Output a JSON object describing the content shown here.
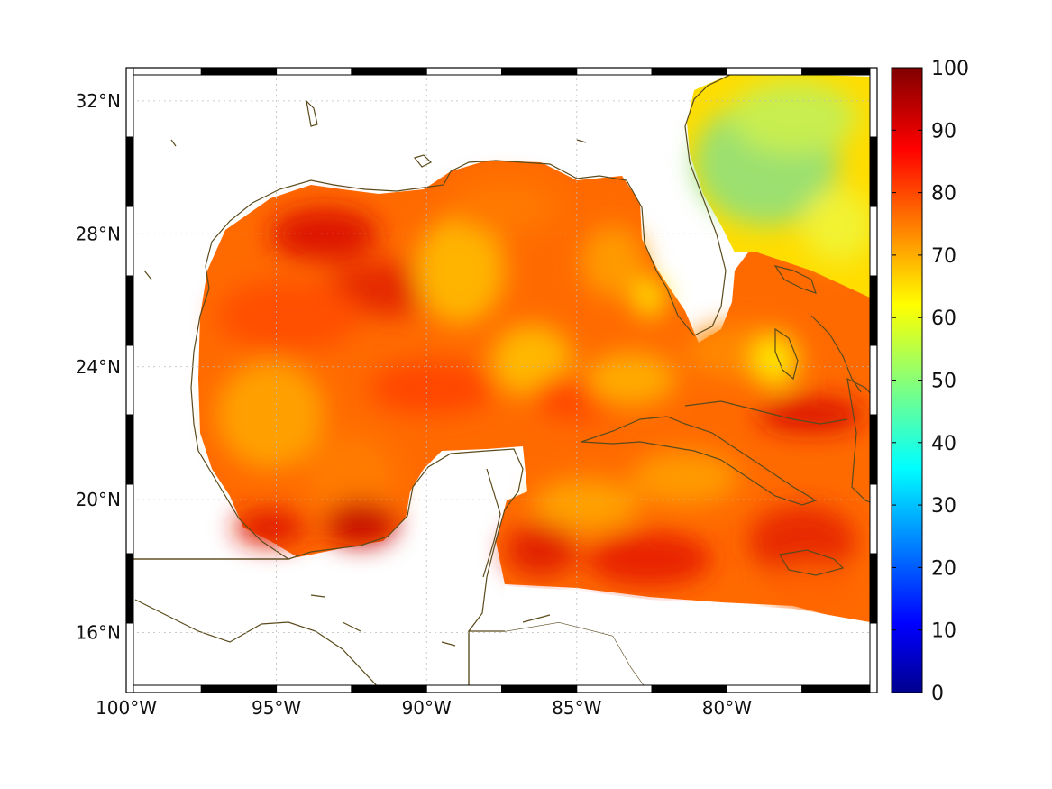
{
  "map": {
    "projection": "mercator-like lat/lon",
    "lon_range": [
      -100,
      -75
    ],
    "lat_range": [
      14.2,
      33
    ],
    "x_ticks": [
      {
        "lon": -100,
        "label": "100°W"
      },
      {
        "lon": -95,
        "label": "95°W"
      },
      {
        "lon": -90,
        "label": "90°W"
      },
      {
        "lon": -85,
        "label": "85°W"
      },
      {
        "lon": -80,
        "label": "80°W"
      }
    ],
    "y_ticks": [
      {
        "lat": 32,
        "label": "32°N"
      },
      {
        "lat": 28,
        "label": "28°N"
      },
      {
        "lat": 24,
        "label": "24°N"
      },
      {
        "lat": 20,
        "label": "20°N"
      },
      {
        "lat": 16,
        "label": "16°N"
      }
    ],
    "grid": true,
    "frame": "alternating black/white border",
    "land_color": "#ffffff",
    "coastline_color": "#5a4a1c"
  },
  "colorbar": {
    "colormap": "jet",
    "range": [
      0,
      100
    ],
    "ticks": [
      "100",
      "90",
      "80",
      "70",
      "60",
      "50",
      "40",
      "30",
      "20",
      "10",
      "0"
    ],
    "placement": "right"
  },
  "field": {
    "dominant_value_range": [
      60,
      95
    ],
    "colors": {
      "high": "#dd1a00",
      "mid": "#ff6a00",
      "low": "#ffcc00",
      "atlantic_min": "#9be070"
    }
  }
}
